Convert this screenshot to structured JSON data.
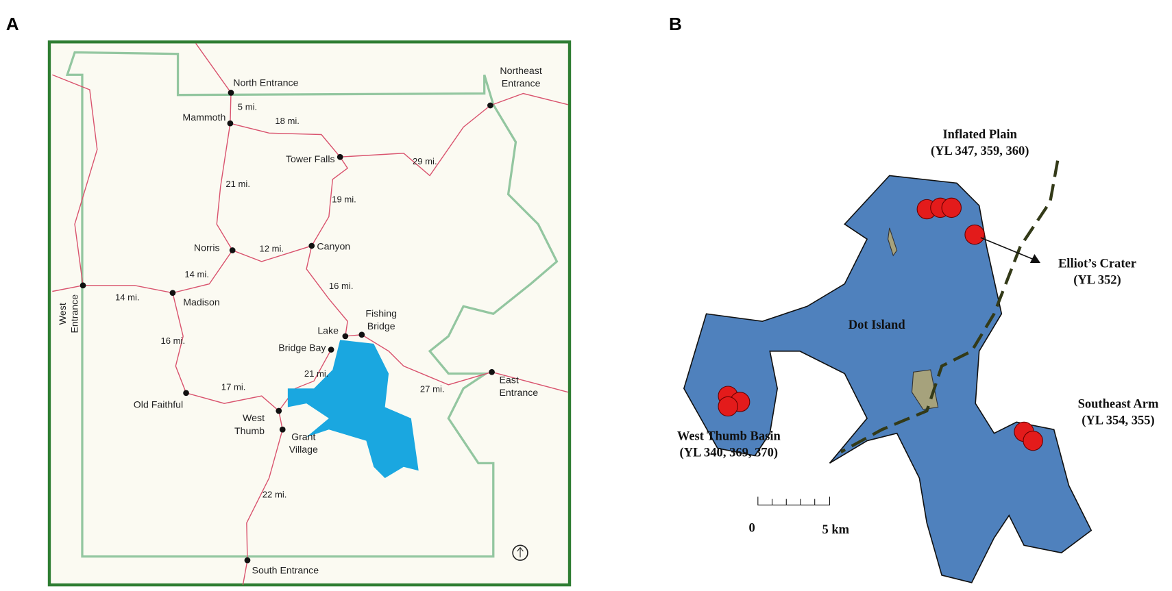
{
  "panel_a": {
    "label": "A",
    "places": [
      {
        "lines": [
          "North Entrance"
        ]
      },
      {
        "lines": [
          "Northeast",
          "Entrance"
        ]
      },
      {
        "lines": [
          "Mammoth"
        ]
      },
      {
        "lines": [
          "Tower Falls"
        ]
      },
      {
        "lines": [
          "Norris"
        ]
      },
      {
        "lines": [
          "Canyon"
        ]
      },
      {
        "lines": [
          "West",
          "Entrance"
        ]
      },
      {
        "lines": [
          "Madison"
        ]
      },
      {
        "lines": [
          "Lake"
        ]
      },
      {
        "lines": [
          "Fishing",
          "Bridge"
        ]
      },
      {
        "lines": [
          "Bridge Bay"
        ]
      },
      {
        "lines": [
          "Old Faithful"
        ]
      },
      {
        "lines": [
          "West",
          "Thumb"
        ]
      },
      {
        "lines": [
          "Grant",
          "Village"
        ]
      },
      {
        "lines": [
          "East",
          "Entrance"
        ]
      },
      {
        "lines": [
          "South Entrance"
        ]
      }
    ],
    "distances": [
      "5 mi.",
      "18 mi.",
      "29 mi.",
      "21 mi.",
      "19 mi.",
      "12 mi.",
      "14 mi.",
      "14 mi.",
      "16 mi.",
      "16 mi.",
      "21 mi.",
      "17 mi.",
      "27 mi.",
      "22 mi."
    ]
  },
  "panel_b": {
    "label": "B",
    "sites": [
      {
        "lines": [
          "Inflated Plain",
          "(YL 347, 359, 360)"
        ]
      },
      {
        "lines": [
          "Elliot’s Crater",
          "(YL 352)"
        ]
      },
      {
        "lines": [
          "Dot Island"
        ]
      },
      {
        "lines": [
          "Southeast Arm",
          "(YL 354, 355)"
        ]
      },
      {
        "lines": [
          "West Thumb Basin",
          "(YL 340, 369, 370)"
        ]
      }
    ],
    "scale": {
      "start": "0",
      "end": "5 km"
    }
  }
}
